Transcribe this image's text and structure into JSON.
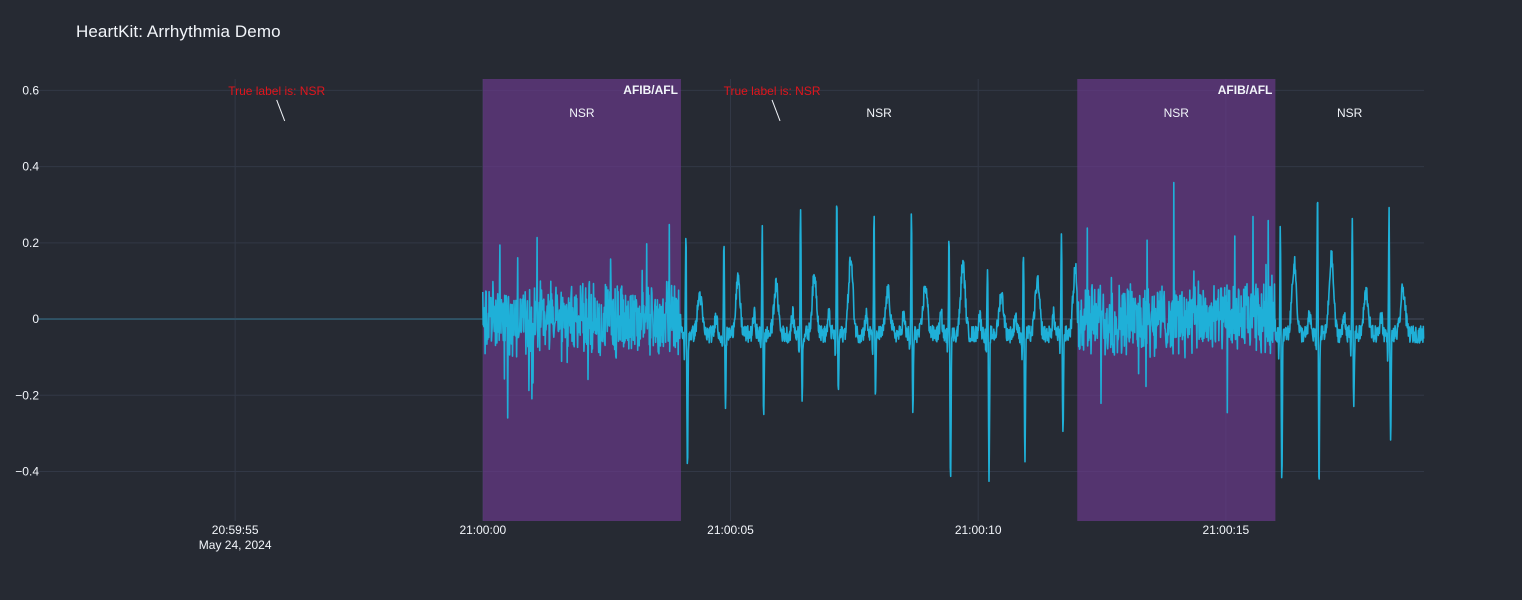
{
  "title": "HeartKit: Arrhythmia Demo",
  "colors": {
    "background": "#262a33",
    "grid": "#323846",
    "zeroline": "#3a4150",
    "text": "#f2f5fa",
    "ecg_line": "#1fb0d8",
    "afib_shade": "#6a3a8c",
    "annotation": "#e0161d"
  },
  "chart_data": {
    "type": "line",
    "title": "HeartKit: Arrhythmia Demo",
    "xlabel": "",
    "ylabel": "",
    "x_axis": {
      "type": "time",
      "range": [
        "20:59:51",
        "21:00:19"
      ],
      "ticks": [
        {
          "time": "20:59:55",
          "label": "20:59:55",
          "sublabel": "May 24, 2024"
        },
        {
          "time": "21:00:00",
          "label": "21:00:00"
        },
        {
          "time": "21:00:05",
          "label": "21:00:05"
        },
        {
          "time": "21:00:10",
          "label": "21:00:10"
        },
        {
          "time": "21:00:15",
          "label": "21:00:15"
        }
      ]
    },
    "y_axis": {
      "range": [
        -0.53,
        0.63
      ],
      "ticks": [
        {
          "value": 0.6,
          "label": "0.6"
        },
        {
          "value": 0.4,
          "label": "0.4"
        },
        {
          "value": 0.2,
          "label": "0.2"
        },
        {
          "value": 0,
          "label": "0"
        },
        {
          "value": -0.2,
          "label": "−0.2"
        },
        {
          "value": -0.4,
          "label": "−0.4"
        }
      ]
    },
    "grid": true,
    "series": [
      {
        "signal_start": "21:00:00",
        "signal_end": "21:00:20",
        "baseline_before_start": 0
      }
    ],
    "segments": [
      {
        "start": "21:00:00",
        "end": "21:00:04",
        "rhythm_label": "NSR",
        "prediction": "AFIB/AFL",
        "highlighted": true
      },
      {
        "start": "21:00:04",
        "end": "21:00:12",
        "rhythm_label": "NSR",
        "prediction": "",
        "highlighted": false
      },
      {
        "start": "21:00:12",
        "end": "21:00:16",
        "rhythm_label": "NSR",
        "prediction": "AFIB/AFL",
        "highlighted": true
      },
      {
        "start": "21:00:16",
        "end": "21:00:20",
        "rhythm_label": "NSR",
        "prediction": "",
        "highlighted": false
      }
    ],
    "annotations": [
      {
        "text": "True label is: NSR",
        "time": "20:59:56",
        "y": 0.52
      },
      {
        "text": "True label is: NSR",
        "time": "21:00:06",
        "y": 0.52
      }
    ]
  }
}
